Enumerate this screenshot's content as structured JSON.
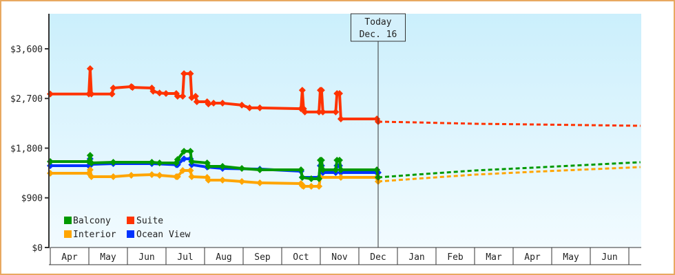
{
  "chart_data": {
    "type": "line",
    "title": "",
    "xlabel": "",
    "ylabel": "",
    "ylim": [
      0,
      4235
    ],
    "y_ticks": [
      0,
      900,
      1800,
      2700,
      3600
    ],
    "y_tick_labels": [
      "$0",
      "$900",
      "$1,800",
      "$2,700",
      "$3,600"
    ],
    "x_ticks": [
      "Apr",
      "May",
      "Jun",
      "Jul",
      "Aug",
      "Sep",
      "Oct",
      "Nov",
      "Dec",
      "Jan",
      "Feb",
      "Mar",
      "Apr",
      "May",
      "Jun",
      ""
    ],
    "grid": false,
    "background": "light blue gradient",
    "legend_position": "bottom-left",
    "today_marker": {
      "line1": "Today",
      "line2": "Dec. 16",
      "date": "Dec 16"
    },
    "series": [
      {
        "name": "Balcony",
        "color": "#009900",
        "points": [
          [
            "Apr 1",
            1557
          ],
          [
            "May 1",
            1557
          ],
          [
            "May 2",
            1669
          ],
          [
            "May 3",
            1532
          ],
          [
            "May 20",
            1544
          ],
          [
            "Jun 20",
            1544
          ],
          [
            "Jun 26",
            1532
          ],
          [
            "Jul 9",
            1532
          ],
          [
            "Jul 10",
            1594
          ],
          [
            "Jul 15",
            1744
          ],
          [
            "Jul 20",
            1744
          ],
          [
            "Jul 21",
            1557
          ],
          [
            "Aug 3",
            1532
          ],
          [
            "Aug 4",
            1470
          ],
          [
            "Aug 15",
            1470
          ],
          [
            "Aug 30",
            1432
          ],
          [
            "Sep 14",
            1407
          ],
          [
            "Oct 16",
            1407
          ],
          [
            "Oct 17",
            1270
          ],
          [
            "Oct 24",
            1245
          ],
          [
            "Oct 30",
            1245
          ],
          [
            "Nov 1",
            1582
          ],
          [
            "Nov 2",
            1582
          ],
          [
            "Nov 3",
            1407
          ],
          [
            "Nov 13",
            1407
          ],
          [
            "Nov 14",
            1582
          ],
          [
            "Nov 16",
            1582
          ],
          [
            "Nov 17",
            1407
          ],
          [
            "Dec 15",
            1407
          ],
          [
            "Dec 16",
            1270
          ]
        ],
        "forecast": [
          [
            "Dec 16",
            1270
          ],
          [
            "Jan 15",
            1320
          ],
          [
            "Mar 1",
            1395
          ],
          [
            "Apr 15",
            1445
          ],
          [
            "Jul 10",
            1545
          ]
        ]
      },
      {
        "name": "Suite",
        "color": "#ff3300",
        "points": [
          [
            "Apr 1",
            2780
          ],
          [
            "May 1",
            2780
          ],
          [
            "May 2",
            3240
          ],
          [
            "May 3",
            2780
          ],
          [
            "May 19",
            2780
          ],
          [
            "May 20",
            2890
          ],
          [
            "Jun 4",
            2915
          ],
          [
            "Jun 5",
            2900
          ],
          [
            "Jun 20",
            2890
          ],
          [
            "Jun 21",
            2830
          ],
          [
            "Jun 26",
            2800
          ],
          [
            "Jul 1",
            2790
          ],
          [
            "Jul 9",
            2790
          ],
          [
            "Jul 10",
            2740
          ],
          [
            "Jul 14",
            2740
          ],
          [
            "Jul 15",
            3150
          ],
          [
            "Jul 20",
            3150
          ],
          [
            "Jul 21",
            2715
          ],
          [
            "Jul 24",
            2740
          ],
          [
            "Jul 25",
            2640
          ],
          [
            "Aug 3",
            2640
          ],
          [
            "Aug 4",
            2600
          ],
          [
            "Aug 8",
            2615
          ],
          [
            "Aug 15",
            2615
          ],
          [
            "Aug 30",
            2580
          ],
          [
            "Sep 6",
            2530
          ],
          [
            "Sep 14",
            2530
          ],
          [
            "Oct 16",
            2515
          ],
          [
            "Oct 17",
            2850
          ],
          [
            "Oct 18",
            2515
          ],
          [
            "Oct 19",
            2455
          ],
          [
            "Oct 30",
            2455
          ],
          [
            "Nov 1",
            2850
          ],
          [
            "Nov 2",
            2850
          ],
          [
            "Nov 3",
            2455
          ],
          [
            "Nov 13",
            2455
          ],
          [
            "Nov 14",
            2790
          ],
          [
            "Nov 16",
            2790
          ],
          [
            "Nov 17",
            2330
          ],
          [
            "Dec 15",
            2330
          ],
          [
            "Dec 16",
            2280
          ]
        ],
        "forecast": [
          [
            "Dec 16",
            2280
          ],
          [
            "Jan 15",
            2267
          ],
          [
            "Mar 1",
            2242
          ],
          [
            "Apr 15",
            2230
          ],
          [
            "Jul 10",
            2205
          ]
        ]
      },
      {
        "name": "Interior",
        "color": "#ffa500",
        "points": [
          [
            "Apr 1",
            1345
          ],
          [
            "May 1",
            1345
          ],
          [
            "May 2",
            1407
          ],
          [
            "May 3",
            1283
          ],
          [
            "May 20",
            1283
          ],
          [
            "Jun 4",
            1308
          ],
          [
            "Jun 20",
            1320
          ],
          [
            "Jun 26",
            1308
          ],
          [
            "Jul 9",
            1283
          ],
          [
            "Jul 10",
            1283
          ],
          [
            "Jul 14",
            1395
          ],
          [
            "Jul 20",
            1395
          ],
          [
            "Jul 21",
            1283
          ],
          [
            "Aug 3",
            1270
          ],
          [
            "Aug 4",
            1220
          ],
          [
            "Aug 15",
            1220
          ],
          [
            "Aug 30",
            1196
          ],
          [
            "Sep 14",
            1171
          ],
          [
            "Oct 16",
            1158
          ],
          [
            "Oct 17",
            1121
          ],
          [
            "Oct 18",
            1109
          ],
          [
            "Oct 24",
            1109
          ],
          [
            "Oct 30",
            1109
          ],
          [
            "Nov 1",
            1270
          ],
          [
            "Nov 17",
            1270
          ],
          [
            "Dec 15",
            1270
          ],
          [
            "Dec 16",
            1196
          ]
        ],
        "forecast": [
          [
            "Dec 16",
            1196
          ],
          [
            "Jan 15",
            1245
          ],
          [
            "Mar 1",
            1320
          ],
          [
            "Apr 15",
            1370
          ],
          [
            "Jul 10",
            1457
          ]
        ]
      },
      {
        "name": "Ocean View",
        "color": "#0033ff",
        "points": [
          [
            "Apr 1",
            1482
          ],
          [
            "May 1",
            1482
          ],
          [
            "May 2",
            1607
          ],
          [
            "May 3",
            1507
          ],
          [
            "May 20",
            1520
          ],
          [
            "Jun 20",
            1520
          ],
          [
            "Jul 9",
            1500
          ],
          [
            "Jul 10",
            1500
          ],
          [
            "Jul 15",
            1607
          ],
          [
            "Jul 20",
            1607
          ],
          [
            "Jul 21",
            1500
          ],
          [
            "Aug 3",
            1457
          ],
          [
            "Aug 15",
            1432
          ],
          [
            "Sep 14",
            1420
          ],
          [
            "Oct 16",
            1382
          ],
          [
            "Oct 17",
            1270
          ],
          [
            "Oct 30",
            1270
          ],
          [
            "Nov 1",
            1482
          ],
          [
            "Nov 2",
            1482
          ],
          [
            "Nov 3",
            1357
          ],
          [
            "Nov 13",
            1357
          ],
          [
            "Nov 14",
            1482
          ],
          [
            "Nov 16",
            1482
          ],
          [
            "Nov 17",
            1357
          ],
          [
            "Dec 15",
            1357
          ],
          [
            "Dec 16",
            1357
          ]
        ],
        "forecast": []
      }
    ]
  },
  "legend": [
    {
      "label": "Balcony",
      "color": "#009900"
    },
    {
      "label": "Suite",
      "color": "#ff3300"
    },
    {
      "label": "Interior",
      "color": "#ffa500"
    },
    {
      "label": "Ocean View",
      "color": "#0033ff"
    }
  ]
}
